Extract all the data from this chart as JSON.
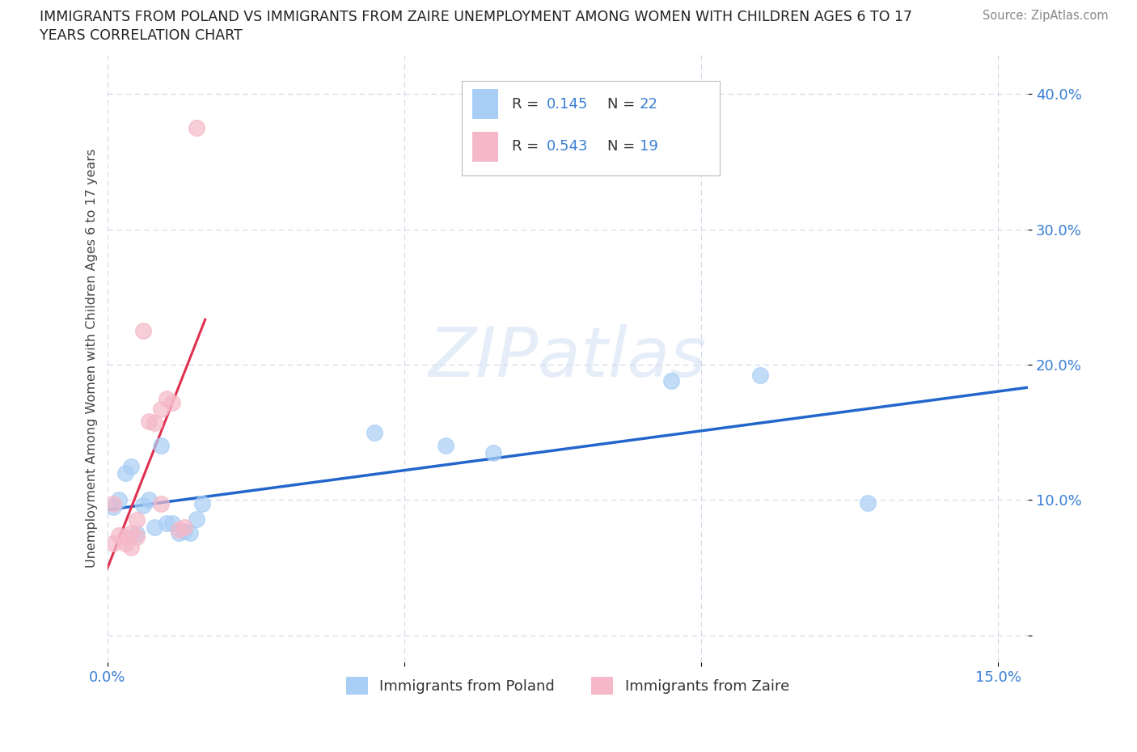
{
  "title_line1": "IMMIGRANTS FROM POLAND VS IMMIGRANTS FROM ZAIRE UNEMPLOYMENT AMONG WOMEN WITH CHILDREN AGES 6 TO 17",
  "title_line2": "YEARS CORRELATION CHART",
  "source": "Source: ZipAtlas.com",
  "ylabel": "Unemployment Among Women with Children Ages 6 to 17 years",
  "xlim": [
    0.0,
    0.155
  ],
  "ylim": [
    -0.02,
    0.43
  ],
  "poland_R": "0.145",
  "poland_N": "22",
  "zaire_R": "0.543",
  "zaire_N": "19",
  "poland_color": "#a8cef5",
  "zaire_color": "#f5b8c8",
  "poland_line_color": "#2266cc",
  "zaire_line_color": "#e03050",
  "watermark_text": "ZIPatlas",
  "poland_x": [
    0.001,
    0.002,
    0.003,
    0.004,
    0.005,
    0.006,
    0.007,
    0.008,
    0.009,
    0.01,
    0.011,
    0.012,
    0.013,
    0.014,
    0.015,
    0.016,
    0.045,
    0.057,
    0.065,
    0.095,
    0.11,
    0.128
  ],
  "poland_y": [
    0.095,
    0.1,
    0.12,
    0.125,
    0.075,
    0.096,
    0.1,
    0.08,
    0.14,
    0.083,
    0.083,
    0.076,
    0.077,
    0.076,
    0.086,
    0.097,
    0.15,
    0.14,
    0.135,
    0.188,
    0.192,
    0.098
  ],
  "zaire_x": [
    0.001,
    0.001,
    0.002,
    0.003,
    0.003,
    0.004,
    0.004,
    0.005,
    0.005,
    0.006,
    0.007,
    0.008,
    0.009,
    0.009,
    0.01,
    0.011,
    0.012,
    0.013,
    0.015
  ],
  "zaire_y": [
    0.097,
    0.068,
    0.074,
    0.073,
    0.068,
    0.076,
    0.065,
    0.085,
    0.073,
    0.225,
    0.158,
    0.157,
    0.167,
    0.097,
    0.175,
    0.172,
    0.078,
    0.08,
    0.375
  ]
}
